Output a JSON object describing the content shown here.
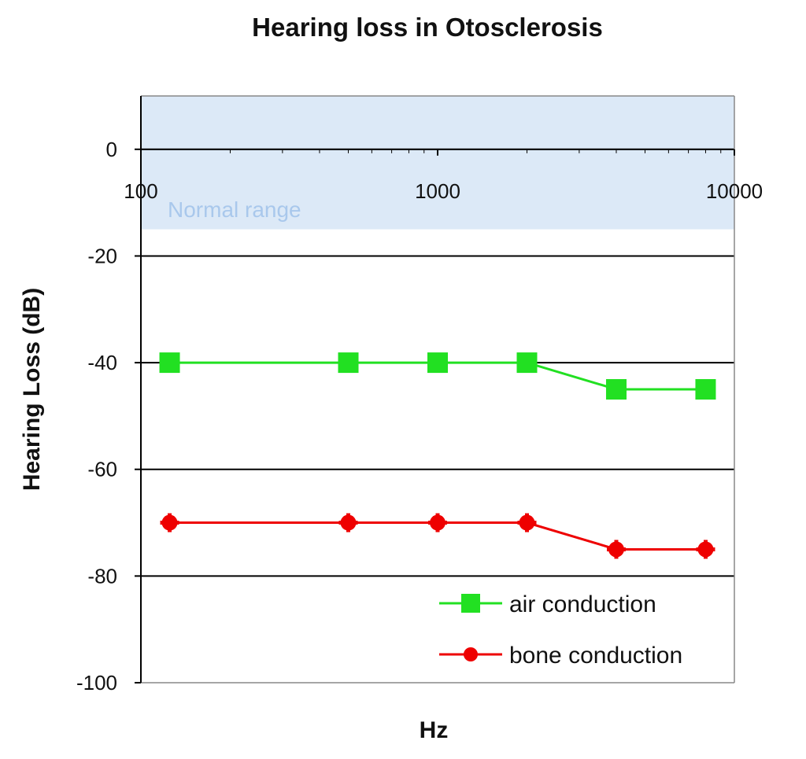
{
  "chart_data": {
    "type": "line",
    "title": "Hearing loss in Otosclerosis",
    "xlabel": "Hz",
    "ylabel": "Hearing Loss (dB)",
    "xscale": "log",
    "xlim": [
      100,
      10000
    ],
    "ylim": [
      -100,
      10
    ],
    "x_ticks": [
      100,
      1000,
      10000
    ],
    "y_ticks": [
      0,
      -20,
      -40,
      -60,
      -80,
      -100
    ],
    "grid": true,
    "legend_position": "bottom-right",
    "normal_range": {
      "label": "Normal range",
      "from": -15,
      "to": 10,
      "color": "#dce9f7",
      "text_color": "#a9c8ec"
    },
    "x": [
      125,
      500,
      1000,
      2000,
      4000,
      8000
    ],
    "series": [
      {
        "name": "air conduction",
        "values": [
          -40,
          -40,
          -40,
          -40,
          -45,
          -45
        ],
        "color": "#22e022",
        "marker": "square"
      },
      {
        "name": "bone conduction",
        "values": [
          -70,
          -70,
          -70,
          -70,
          -75,
          -75
        ],
        "color": "#ee0000",
        "marker": "circle"
      }
    ]
  }
}
